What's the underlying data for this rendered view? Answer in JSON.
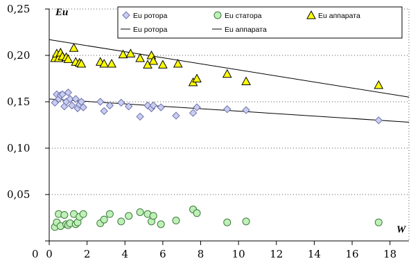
{
  "chart_data": {
    "type": "scatter",
    "ylabel": "Eu",
    "xlabel": "W",
    "xlim": [
      0,
      19
    ],
    "ylim": [
      0,
      0.25
    ],
    "xticks": [
      {
        "value": 0,
        "label": "0"
      },
      {
        "value": 2,
        "label": "2"
      },
      {
        "value": 4,
        "label": "4"
      },
      {
        "value": 6,
        "label": "6"
      },
      {
        "value": 8,
        "label": "8"
      },
      {
        "value": 10,
        "label": "10"
      },
      {
        "value": 12,
        "label": "12"
      },
      {
        "value": 14,
        "label": "14"
      },
      {
        "value": 16,
        "label": "16"
      },
      {
        "value": 18,
        "label": "18"
      }
    ],
    "yticks": [
      {
        "value": 0,
        "label": ""
      },
      {
        "value": 0.05,
        "label": "0,05"
      },
      {
        "value": 0.1,
        "label": "0,10"
      },
      {
        "value": 0.15,
        "label": "0,15"
      },
      {
        "value": 0.2,
        "label": "0,20"
      },
      {
        "value": 0.25,
        "label": "0,25"
      }
    ],
    "y_label_zero": "0",
    "grid": {
      "horizontal": true,
      "vertical": false,
      "style": "dotted"
    },
    "legend": {
      "position": "top-right",
      "columns": 3
    },
    "series": [
      {
        "name": "Eu ротора",
        "marker": "diamond",
        "color": "#c9cdf2",
        "stroke": "#6e72a8",
        "points": [
          [
            0.3,
            0.149
          ],
          [
            0.4,
            0.158
          ],
          [
            0.5,
            0.153
          ],
          [
            0.6,
            0.157
          ],
          [
            0.7,
            0.158
          ],
          [
            0.8,
            0.145
          ],
          [
            0.9,
            0.15
          ],
          [
            1.0,
            0.16
          ],
          [
            1.1,
            0.153
          ],
          [
            1.2,
            0.146
          ],
          [
            1.4,
            0.153
          ],
          [
            1.5,
            0.143
          ],
          [
            1.6,
            0.147
          ],
          [
            1.7,
            0.15
          ],
          [
            1.8,
            0.144
          ],
          [
            2.7,
            0.15
          ],
          [
            2.9,
            0.14
          ],
          [
            3.2,
            0.146
          ],
          [
            3.8,
            0.149
          ],
          [
            4.2,
            0.145
          ],
          [
            4.8,
            0.134
          ],
          [
            5.2,
            0.146
          ],
          [
            5.4,
            0.143
          ],
          [
            5.5,
            0.146
          ],
          [
            5.9,
            0.144
          ],
          [
            6.7,
            0.135
          ],
          [
            7.6,
            0.138
          ],
          [
            7.8,
            0.144
          ],
          [
            9.4,
            0.142
          ],
          [
            10.4,
            0.141
          ],
          [
            17.4,
            0.13
          ]
        ]
      },
      {
        "name": "Eu статора",
        "marker": "circle",
        "color": "#bff0b8",
        "stroke": "#3d7a3d",
        "points": [
          [
            0.3,
            0.015
          ],
          [
            0.4,
            0.02
          ],
          [
            0.5,
            0.029
          ],
          [
            0.6,
            0.016
          ],
          [
            0.8,
            0.028
          ],
          [
            0.9,
            0.018
          ],
          [
            1.0,
            0.017
          ],
          [
            1.1,
            0.019
          ],
          [
            1.3,
            0.029
          ],
          [
            1.4,
            0.018
          ],
          [
            1.5,
            0.02
          ],
          [
            1.6,
            0.026
          ],
          [
            1.8,
            0.029
          ],
          [
            2.7,
            0.019
          ],
          [
            2.9,
            0.023
          ],
          [
            3.2,
            0.029
          ],
          [
            3.8,
            0.021
          ],
          [
            4.2,
            0.027
          ],
          [
            4.8,
            0.031
          ],
          [
            5.2,
            0.029
          ],
          [
            5.4,
            0.021
          ],
          [
            5.5,
            0.027
          ],
          [
            5.9,
            0.018
          ],
          [
            6.7,
            0.022
          ],
          [
            7.6,
            0.034
          ],
          [
            7.8,
            0.03
          ],
          [
            9.4,
            0.02
          ],
          [
            10.4,
            0.021
          ],
          [
            17.4,
            0.02
          ]
        ]
      },
      {
        "name": "Eu аппарата",
        "marker": "triangle",
        "color": "#ffff00",
        "stroke": "#000000",
        "points": [
          [
            0.3,
            0.197
          ],
          [
            0.4,
            0.202
          ],
          [
            0.5,
            0.197
          ],
          [
            0.6,
            0.203
          ],
          [
            0.7,
            0.199
          ],
          [
            0.9,
            0.198
          ],
          [
            1.0,
            0.196
          ],
          [
            1.3,
            0.208
          ],
          [
            1.4,
            0.193
          ],
          [
            1.6,
            0.192
          ],
          [
            1.7,
            0.191
          ],
          [
            2.7,
            0.193
          ],
          [
            2.9,
            0.191
          ],
          [
            3.3,
            0.191
          ],
          [
            3.9,
            0.201
          ],
          [
            4.3,
            0.202
          ],
          [
            4.8,
            0.197
          ],
          [
            5.2,
            0.19
          ],
          [
            5.4,
            0.2
          ],
          [
            5.5,
            0.194
          ],
          [
            6.0,
            0.19
          ],
          [
            6.8,
            0.191
          ],
          [
            7.6,
            0.171
          ],
          [
            7.8,
            0.175
          ],
          [
            9.4,
            0.18
          ],
          [
            10.4,
            0.172
          ],
          [
            17.4,
            0.168
          ]
        ]
      }
    ],
    "trendlines": [
      {
        "name": "Eu ротора",
        "x": [
          0,
          19
        ],
        "y": [
          0.153,
          0.128
        ],
        "color": "#000000"
      },
      {
        "name": "Eu аппарата",
        "x": [
          0,
          19
        ],
        "y": [
          0.217,
          0.155
        ],
        "color": "#000000"
      }
    ]
  }
}
